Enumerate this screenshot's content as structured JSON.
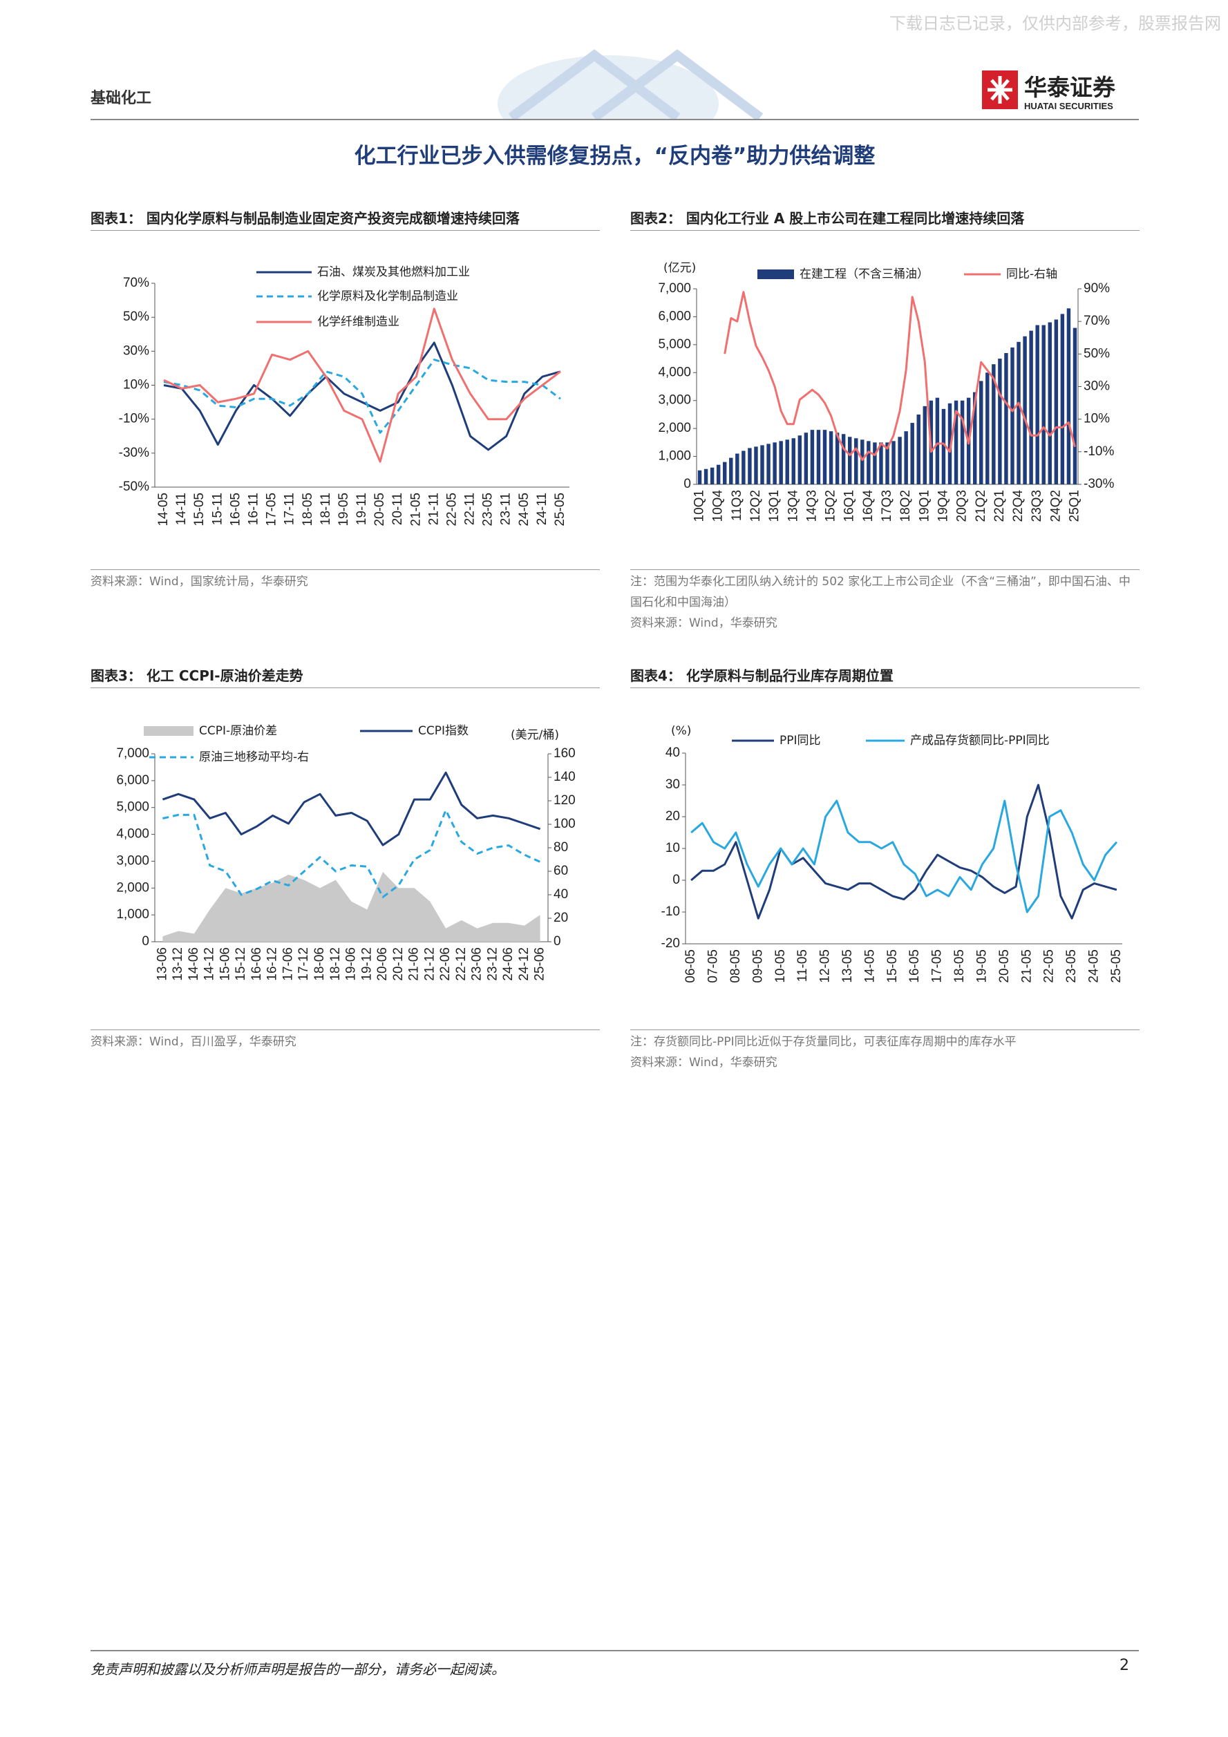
{
  "header": {
    "section": "基础化工",
    "watermark": "下载日志已记录，仅供内部参考，股票报告网",
    "logo_cn": "华泰证券",
    "logo_en": "HUATAI SECURITIES"
  },
  "title": "化工行业已步入供需修复拐点，“反内卷”助力供给调整",
  "chart_data": [
    {
      "type": "line",
      "figure_title": "图表1：  国内化学原料与制品制造业固定资产投资完成额增速持续回落",
      "categories": [
        "14-05",
        "14-11",
        "15-05",
        "15-11",
        "16-05",
        "16-11",
        "17-05",
        "17-11",
        "18-05",
        "18-11",
        "19-05",
        "19-11",
        "20-05",
        "20-11",
        "21-05",
        "21-11",
        "22-05",
        "22-11",
        "23-05",
        "23-11",
        "24-05",
        "24-11",
        "25-05"
      ],
      "series": [
        {
          "name": "石油、煤炭及其他燃料加工业",
          "color": "#1f3d7a",
          "values": [
            10,
            8,
            -5,
            -25,
            -5,
            10,
            2,
            -8,
            5,
            15,
            5,
            0,
            -5,
            0,
            20,
            35,
            10,
            -20,
            -28,
            -20,
            5,
            15,
            18
          ]
        },
        {
          "name": "化学原料及化学制品制造业",
          "color": "#29a8e0",
          "dash": true,
          "values": [
            12,
            10,
            7,
            -2,
            -3,
            2,
            2,
            -2,
            5,
            18,
            15,
            5,
            -18,
            -5,
            10,
            25,
            22,
            20,
            13,
            12,
            12,
            10,
            2
          ]
        },
        {
          "name": "化学纤维制造业",
          "color": "#f07070",
          "values": [
            13,
            8,
            10,
            0,
            2,
            5,
            28,
            25,
            30,
            15,
            -5,
            -10,
            -35,
            5,
            15,
            55,
            25,
            5,
            -10,
            -10,
            2,
            10,
            18
          ]
        }
      ],
      "ylim": [
        -50,
        70
      ],
      "yticks": [
        {
          "value": -50,
          "label": "-50%"
        },
        {
          "value": -30,
          "label": "-30%"
        },
        {
          "value": -10,
          "label": "-10%"
        },
        {
          "value": 10,
          "label": "10%"
        },
        {
          "value": 30,
          "label": "30%"
        },
        {
          "value": 50,
          "label": "50%"
        },
        {
          "value": 70,
          "label": "70%"
        }
      ],
      "notes": [
        "资料来源：Wind，国家统计局，华泰研究"
      ]
    },
    {
      "type": "combo",
      "figure_title": "图表2：  国内化工行业 A 股上市公司在建工程同比增速持续回落",
      "y_unit": "(亿元)",
      "categories": [
        "10Q1",
        null,
        null,
        "10Q4",
        null,
        null,
        "11Q3",
        null,
        null,
        "12Q2",
        null,
        null,
        "13Q1",
        null,
        null,
        "13Q4",
        null,
        null,
        "14Q3",
        null,
        null,
        "15Q2",
        null,
        null,
        "16Q1",
        null,
        null,
        "16Q4",
        null,
        null,
        "17Q3",
        null,
        null,
        "18Q2",
        null,
        null,
        "19Q1",
        null,
        null,
        "19Q4",
        null,
        null,
        "20Q3",
        null,
        null,
        "21Q2",
        null,
        null,
        "22Q1",
        null,
        null,
        "22Q4",
        null,
        null,
        "23Q3",
        null,
        null,
        "24Q2",
        null,
        null,
        "25Q1"
      ],
      "series": [
        {
          "name": "在建工程（不含三桶油）",
          "type": "bar",
          "color": "#1f3d7a",
          "values": [
            500,
            550,
            600,
            700,
            800,
            950,
            1100,
            1200,
            1300,
            1350,
            1400,
            1450,
            1500,
            1550,
            1600,
            1650,
            1750,
            1850,
            1950,
            1950,
            1950,
            1900,
            1850,
            1800,
            1700,
            1650,
            1600,
            1550,
            1500,
            1500,
            1500,
            1550,
            1700,
            1900,
            2200,
            2500,
            2800,
            3000,
            3100,
            2700,
            2900,
            3000,
            3000,
            3100,
            3300,
            3700,
            4000,
            4300,
            4500,
            4700,
            4900,
            5100,
            5300,
            5500,
            5700,
            5700,
            5800,
            5900,
            6100,
            6300,
            5600
          ]
        },
        {
          "name": "同比-右轴",
          "type": "line",
          "axis": "y2",
          "color": "#f07070",
          "values": [
            null,
            null,
            null,
            null,
            50,
            72,
            70,
            88,
            70,
            55,
            48,
            40,
            30,
            15,
            7,
            7,
            22,
            25,
            28,
            25,
            20,
            12,
            0,
            -8,
            -12,
            -8,
            -15,
            -10,
            -12,
            -5,
            -8,
            0,
            15,
            40,
            85,
            70,
            45,
            -10,
            -5,
            -5,
            -10,
            15,
            10,
            -5,
            20,
            45,
            40,
            35,
            25,
            20,
            15,
            20,
            10,
            0,
            0,
            5,
            0,
            5,
            5,
            8,
            -7
          ]
        }
      ],
      "ylim": [
        0,
        7000
      ],
      "yticks": [
        0,
        {
          "value": 1000,
          "label": "1,000"
        },
        {
          "value": 2000,
          "label": "2,000"
        },
        {
          "value": 3000,
          "label": "3,000"
        },
        {
          "value": 4000,
          "label": "4,000"
        },
        {
          "value": 5000,
          "label": "5,000"
        },
        {
          "value": 6000,
          "label": "6,000"
        },
        {
          "value": 7000,
          "label": "7,000"
        }
      ],
      "y2lim": [
        -30,
        90
      ],
      "y2ticks": [
        {
          "value": -30,
          "label": "-30%"
        },
        {
          "value": -10,
          "label": "-10%"
        },
        {
          "value": 10,
          "label": "10%"
        },
        {
          "value": 30,
          "label": "30%"
        },
        {
          "value": 50,
          "label": "50%"
        },
        {
          "value": 70,
          "label": "70%"
        },
        {
          "value": 90,
          "label": "90%"
        }
      ],
      "notes": [
        "注：范围为华泰化工团队纳入统计的 502 家化工上市公司企业（不含“三桶油”，即中国石油、中国石化和中国海油）",
        "资料来源：Wind，华泰研究"
      ]
    },
    {
      "type": "combo",
      "figure_title": "图表3：  化工 CCPI-原油价差走势",
      "y2_unit": "(美元/桶)",
      "categories": [
        "13-06",
        "13-12",
        "14-06",
        "14-12",
        "15-06",
        "15-12",
        "16-06",
        "16-12",
        "17-06",
        "17-12",
        "18-06",
        "18-12",
        "19-06",
        "19-12",
        "20-06",
        "20-12",
        "21-06",
        "21-12",
        "22-06",
        "22-12",
        "23-06",
        "23-12",
        "24-06",
        "24-12",
        "25-06"
      ],
      "series": [
        {
          "name": "CCPI-原油价差",
          "type": "area",
          "color": "#c9c9c9",
          "values": [
            200,
            400,
            300,
            1200,
            2000,
            1800,
            2000,
            2200,
            2500,
            2300,
            2000,
            2300,
            1500,
            1200,
            2600,
            2000,
            2000,
            1500,
            500,
            800,
            500,
            700,
            700,
            600,
            1000
          ]
        },
        {
          "name": "CCPI指数",
          "type": "line",
          "color": "#1f3d7a",
          "values": [
            5300,
            5500,
            5300,
            4600,
            4800,
            4000,
            4300,
            4700,
            4400,
            5200,
            5500,
            4700,
            4800,
            4500,
            3600,
            4000,
            5300,
            5300,
            6300,
            5100,
            4600,
            4700,
            4600,
            4400,
            4200
          ]
        },
        {
          "name": "原油三地移动平均-右",
          "type": "line",
          "axis": "y2",
          "dash": true,
          "color": "#29a8e0",
          "values": [
            105,
            108,
            108,
            65,
            60,
            40,
            45,
            52,
            48,
            60,
            72,
            60,
            65,
            64,
            38,
            48,
            70,
            78,
            112,
            85,
            75,
            80,
            82,
            74,
            68
          ]
        }
      ],
      "ylim": [
        0,
        7000
      ],
      "yticks": [
        0,
        {
          "value": 1000,
          "label": "1,000"
        },
        {
          "value": 2000,
          "label": "2,000"
        },
        {
          "value": 3000,
          "label": "3,000"
        },
        {
          "value": 4000,
          "label": "4,000"
        },
        {
          "value": 5000,
          "label": "5,000"
        },
        {
          "value": 6000,
          "label": "6,000"
        },
        {
          "value": 7000,
          "label": "7,000"
        }
      ],
      "y2lim": [
        0,
        160
      ],
      "y2ticks": [
        0,
        20,
        40,
        60,
        80,
        100,
        120,
        140,
        160
      ],
      "notes": [
        "资料来源：Wind，百川盈孚，华泰研究"
      ]
    },
    {
      "type": "line",
      "figure_title": "图表4：  化学原料与制品行业库存周期位置",
      "y_unit": "(%)",
      "categories": [
        "06-05",
        null,
        "07-05",
        null,
        "08-05",
        null,
        "09-05",
        null,
        "10-05",
        null,
        "11-05",
        null,
        "12-05",
        null,
        "13-05",
        null,
        "14-05",
        null,
        "15-05",
        null,
        "16-05",
        null,
        "17-05",
        null,
        "18-05",
        null,
        "19-05",
        null,
        "20-05",
        null,
        "21-05",
        null,
        "22-05",
        null,
        "23-05",
        null,
        "24-05",
        null,
        "25-05"
      ],
      "series": [
        {
          "name": "PPI同比",
          "color": "#1f3d7a",
          "values": [
            0,
            3,
            3,
            5,
            12,
            0,
            -12,
            -3,
            10,
            5,
            7,
            3,
            -1,
            -2,
            -3,
            -1,
            -1,
            -3,
            -5,
            -6,
            -3,
            3,
            8,
            6,
            4,
            3,
            1,
            -2,
            -4,
            -2,
            20,
            30,
            15,
            -5,
            -12,
            -3,
            -1,
            -2,
            -3
          ]
        },
        {
          "name": "产成品存货额同比-PPI同比",
          "color": "#29a8e0",
          "values": [
            15,
            18,
            12,
            10,
            15,
            5,
            -2,
            5,
            10,
            5,
            10,
            5,
            20,
            25,
            15,
            12,
            12,
            10,
            12,
            5,
            2,
            -5,
            -3,
            -5,
            1,
            -3,
            5,
            10,
            25,
            5,
            -10,
            -5,
            20,
            22,
            15,
            5,
            0,
            8,
            12
          ]
        }
      ],
      "ylim": [
        -20,
        40
      ],
      "yticks": [
        -20,
        -10,
        0,
        10,
        20,
        30,
        40
      ],
      "notes": [
        "注：存货额同比-PPI同比近似于存货量同比，可表征库存周期中的库存水平",
        "资料来源：Wind，华泰研究"
      ]
    }
  ],
  "footer": {
    "disclaimer": "免责声明和披露以及分析师声明是报告的一部分，请务必一起阅读。",
    "page": "2"
  }
}
